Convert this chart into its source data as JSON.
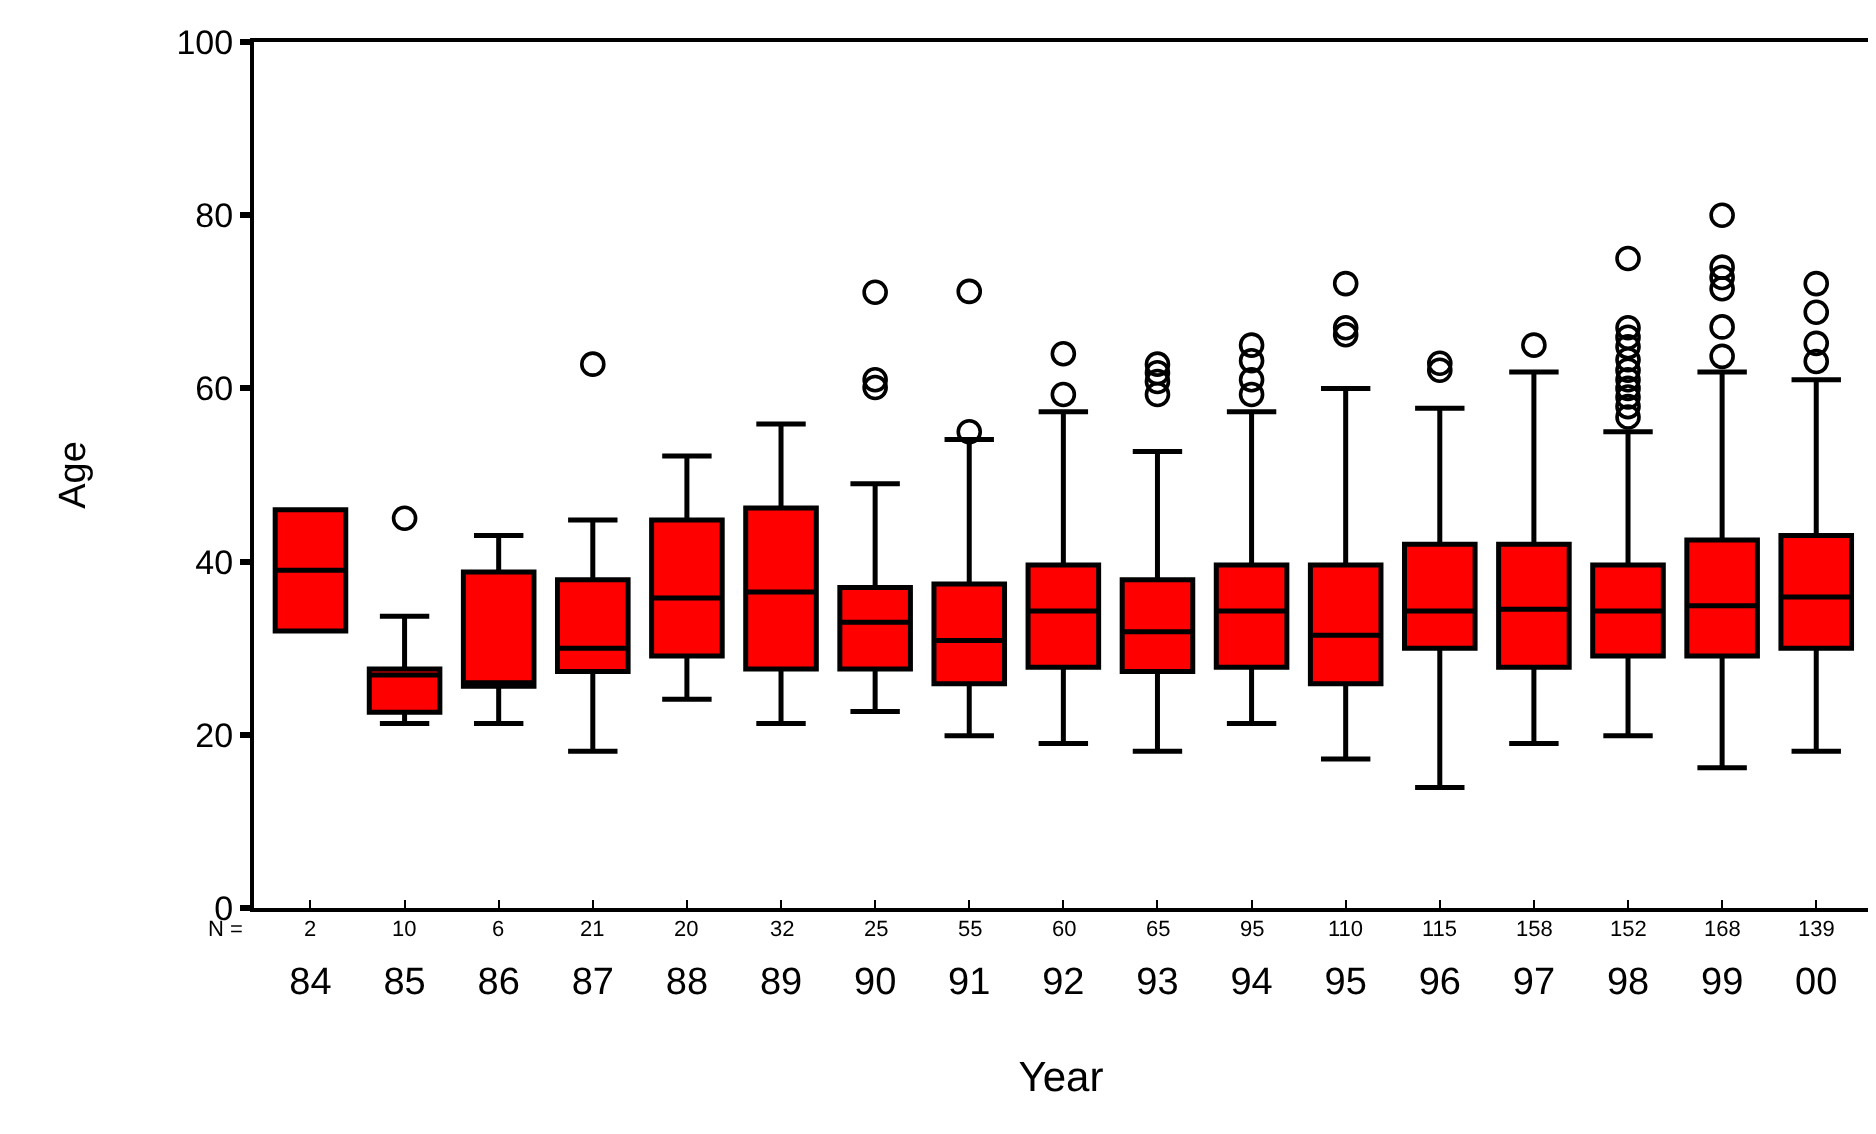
{
  "chart_data": {
    "type": "box",
    "xlabel": "Year",
    "ylabel": "Age",
    "categories": [
      "84",
      "85",
      "86",
      "87",
      "88",
      "89",
      "90",
      "91",
      "92",
      "93",
      "94",
      "95",
      "96",
      "97",
      "98",
      "99",
      "00"
    ],
    "color": "#ff0000",
    "boxes": [
      {
        "low": 32,
        "q1": 32,
        "median": 39,
        "q3": 46,
        "high": 46
      },
      {
        "low": 21.3,
        "q1": 22.6,
        "median": 26.9,
        "q3": 27.6,
        "high": 33.7,
        "outliers": [
          45
        ]
      },
      {
        "low": 21.3,
        "q1": 25.6,
        "median": 26,
        "q3": 38.8,
        "high": 43
      },
      {
        "low": 18.1,
        "q1": 27.3,
        "median": 30,
        "q3": 37.9,
        "high": 44.8,
        "outliers": [
          62.8
        ]
      },
      {
        "low": 24.1,
        "q1": 29.1,
        "median": 35.8,
        "q3": 44.8,
        "high": 52.2
      },
      {
        "low": 21.3,
        "q1": 27.6,
        "median": 36.5,
        "q3": 46.2,
        "high": 55.9
      },
      {
        "low": 22.7,
        "q1": 27.6,
        "median": 33,
        "q3": 37,
        "high": 49,
        "outliers": [
          60.1,
          61,
          71.1
        ]
      },
      {
        "low": 19.9,
        "q1": 25.9,
        "median": 30.9,
        "q3": 37.4,
        "high": 54.1,
        "outliers": [
          55,
          71.2
        ]
      },
      {
        "low": 19,
        "q1": 27.8,
        "median": 34.3,
        "q3": 39.6,
        "high": 57.3,
        "outliers": [
          59.3,
          64
        ]
      },
      {
        "low": 18.1,
        "q1": 27.3,
        "median": 31.9,
        "q3": 37.9,
        "high": 52.7,
        "outliers": [
          59.3,
          60.8,
          61.8,
          62.8
        ]
      },
      {
        "low": 21.3,
        "q1": 27.8,
        "median": 34.3,
        "q3": 39.6,
        "high": 57.3,
        "outliers": [
          59.3,
          61,
          63.2,
          65
        ]
      },
      {
        "low": 17.2,
        "q1": 25.9,
        "median": 31.5,
        "q3": 39.6,
        "high": 60,
        "outliers": [
          66.2,
          67,
          72.1
        ]
      },
      {
        "low": 13.9,
        "q1": 30,
        "median": 34.3,
        "q3": 42,
        "high": 57.7,
        "outliers": [
          62.1,
          62.9
        ]
      },
      {
        "low": 19,
        "q1": 27.8,
        "median": 34.5,
        "q3": 42,
        "high": 61.9,
        "outliers": [
          65
        ]
      },
      {
        "low": 19.9,
        "q1": 29.1,
        "median": 34.3,
        "q3": 39.6,
        "high": 55,
        "outliers": [
          56.7,
          57.9,
          59,
          60,
          61,
          62.1,
          63.3,
          64.8,
          65.9,
          67,
          75
        ]
      },
      {
        "low": 16.2,
        "q1": 29.1,
        "median": 34.9,
        "q3": 42.5,
        "high": 61.9,
        "outliers": [
          63.7,
          67.1,
          71.5,
          72.8,
          74,
          80
        ]
      },
      {
        "low": 18.1,
        "q1": 30,
        "median": 35.9,
        "q3": 43,
        "high": 61,
        "outliers": [
          63.1,
          65.2,
          68.8,
          72.1
        ]
      }
    ],
    "ylim": [
      0,
      100
    ],
    "yticks": [
      0,
      20,
      40,
      60,
      80,
      100
    ],
    "grid": false,
    "annotations": [
      "N =",
      "2",
      "10",
      "6",
      "21",
      "20",
      "32",
      "25",
      "55",
      "60",
      "65",
      "95",
      "110",
      "115",
      "158",
      "152",
      "168",
      "139"
    ]
  }
}
